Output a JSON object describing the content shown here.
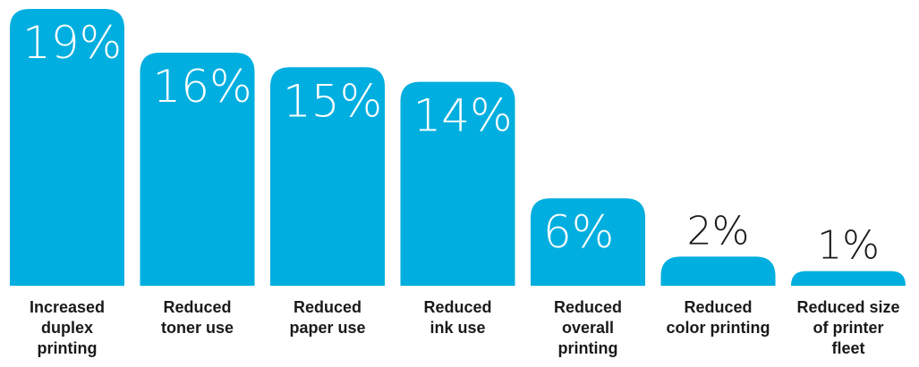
{
  "chart_data": {
    "type": "bar",
    "categories": [
      [
        "Increased",
        "duplex",
        "printing"
      ],
      [
        "Reduced",
        "toner use"
      ],
      [
        "Reduced",
        "paper use"
      ],
      [
        "Reduced",
        "ink use"
      ],
      [
        "Reduced",
        "overall",
        "printing"
      ],
      [
        "Reduced",
        "color printing"
      ],
      [
        "Reduced size",
        "of printer",
        "fleet"
      ]
    ],
    "values": [
      19,
      16,
      15,
      14,
      6,
      2,
      1
    ],
    "value_labels": [
      "19%",
      "16%",
      "15%",
      "14%",
      "6%",
      "2%",
      "1%"
    ],
    "ylim": [
      0,
      19
    ],
    "grid": false,
    "bar_color": "#00AEDF",
    "value_text_color_inside": "#ffffff",
    "value_text_color_outside": "#1a1a1a"
  }
}
